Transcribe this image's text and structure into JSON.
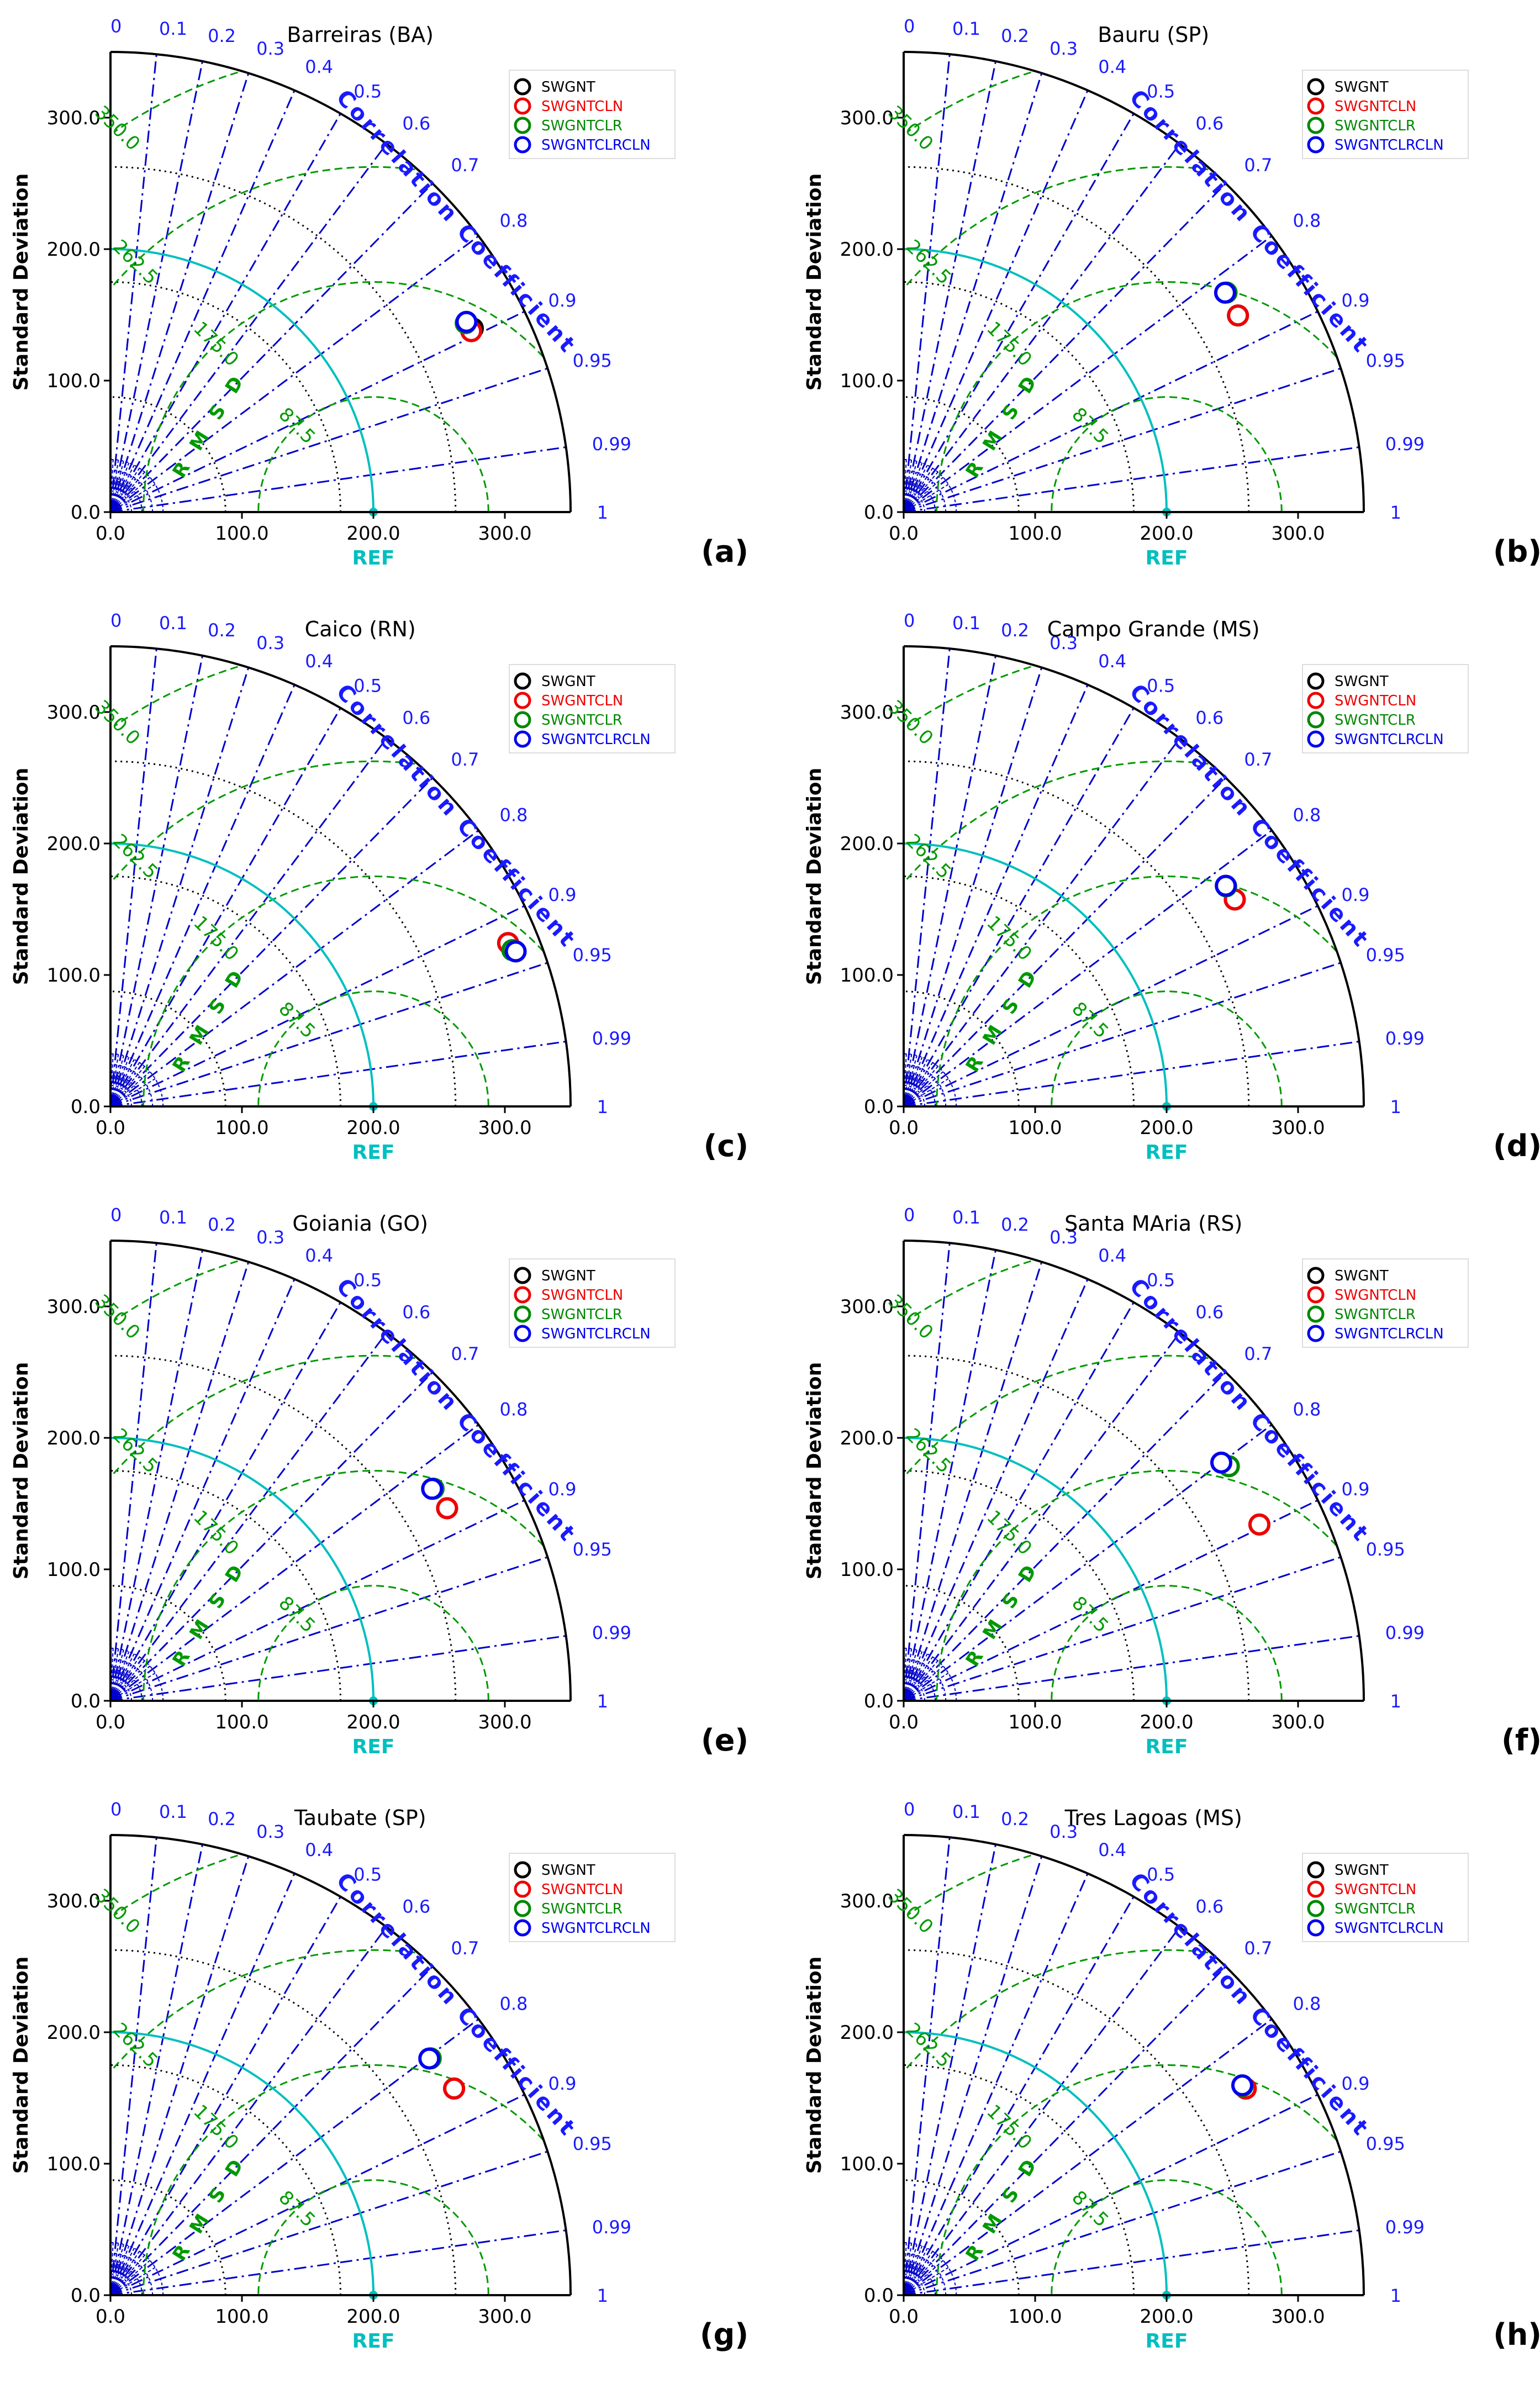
{
  "chart_data": [
    {
      "type": "taylor",
      "title": "Barreiras (BA)",
      "panel_label": "(a)",
      "ylabel": "Standard Deviation",
      "xlabel": "REF",
      "arc_label": "Correlation Coefficient",
      "rmsd_label": "R M S D",
      "ref_std": 200,
      "std_range": [
        0,
        350
      ],
      "std_ticks": [
        "0.0",
        "100.0",
        "200.0",
        "300.0"
      ],
      "corr_ticks": [
        "0",
        "0.1",
        "0.2",
        "0.3",
        "0.4",
        "0.5",
        "0.6",
        "0.7",
        "0.8",
        "0.9",
        "0.95",
        "0.99",
        "1"
      ],
      "rmsd_ticks": [
        "87.5",
        "175.0",
        "262.5",
        "350.0"
      ],
      "legend": [
        "SWGNT",
        "SWGNTCLN",
        "SWGNTCLR",
        "SWGNTCLRCLN"
      ],
      "points": [
        {
          "name": "SWGNT",
          "std": 309,
          "corr": 0.892
        },
        {
          "name": "SWGNTCLN",
          "std": 307,
          "corr": 0.894
        },
        {
          "name": "SWGNTCLR",
          "std": 306,
          "corr": 0.883
        },
        {
          "name": "SWGNTCLRCLN",
          "std": 307,
          "corr": 0.882
        }
      ]
    },
    {
      "type": "taylor",
      "title": "Bauru (SP)",
      "panel_label": "(b)",
      "ylabel": "Standard Deviation",
      "xlabel": "REF",
      "arc_label": "Correlation Coefficient",
      "rmsd_label": "R M S D",
      "ref_std": 200,
      "std_range": [
        0,
        350
      ],
      "std_ticks": [
        "0.0",
        "100.0",
        "200.0",
        "300.0"
      ],
      "corr_ticks": [
        "0",
        "0.1",
        "0.2",
        "0.3",
        "0.4",
        "0.5",
        "0.6",
        "0.7",
        "0.8",
        "0.9",
        "0.95",
        "0.99",
        "1"
      ],
      "rmsd_ticks": [
        "87.5",
        "175.0",
        "262.5",
        "350.0"
      ],
      "legend": [
        "SWGNT",
        "SWGNTCLN",
        "SWGNTCLR",
        "SWGNTCLRCLN"
      ],
      "points": [
        {
          "name": "SWGNT",
          "std": 295,
          "corr": 0.862
        },
        {
          "name": "SWGNTCLN",
          "std": 295,
          "corr": 0.862
        },
        {
          "name": "SWGNTCLR",
          "std": 297,
          "corr": 0.827
        },
        {
          "name": "SWGNTCLRCLN",
          "std": 296,
          "corr": 0.826
        }
      ]
    },
    {
      "type": "taylor",
      "title": "Caico (RN)",
      "panel_label": "(c)",
      "ylabel": "Standard Deviation",
      "xlabel": "REF",
      "arc_label": "Correlation Coefficient",
      "rmsd_label": "R M S D",
      "ref_std": 200,
      "std_range": [
        0,
        350
      ],
      "std_ticks": [
        "0.0",
        "100.0",
        "200.0",
        "300.0"
      ],
      "corr_ticks": [
        "0",
        "0.1",
        "0.2",
        "0.3",
        "0.4",
        "0.5",
        "0.6",
        "0.7",
        "0.8",
        "0.9",
        "0.95",
        "0.99",
        "1"
      ],
      "rmsd_ticks": [
        "87.5",
        "175.0",
        "262.5",
        "350.0"
      ],
      "legend": [
        "SWGNT",
        "SWGNTCLN",
        "SWGNTCLR",
        "SWGNTCLRCLN"
      ],
      "points": [
        {
          "name": "SWGNT",
          "std": 327,
          "corr": 0.925
        },
        {
          "name": "SWGNTCLN",
          "std": 327,
          "corr": 0.925
        },
        {
          "name": "SWGNTCLR",
          "std": 328,
          "corr": 0.932
        },
        {
          "name": "SWGNTCLRCLN",
          "std": 330,
          "corr": 0.934
        }
      ]
    },
    {
      "type": "taylor",
      "title": "Campo Grande (MS)",
      "panel_label": "(d)",
      "ylabel": "Standard Deviation",
      "xlabel": "REF",
      "arc_label": "Correlation Coefficient",
      "rmsd_label": "R M S D",
      "ref_std": 200,
      "std_range": [
        0,
        350
      ],
      "std_ticks": [
        "0.0",
        "100.0",
        "200.0",
        "300.0"
      ],
      "corr_ticks": [
        "0",
        "0.1",
        "0.2",
        "0.3",
        "0.4",
        "0.5",
        "0.6",
        "0.7",
        "0.8",
        "0.9",
        "0.95",
        "0.99",
        "1"
      ],
      "rmsd_ticks": [
        "87.5",
        "175.0",
        "262.5",
        "350.0"
      ],
      "legend": [
        "SWGNT",
        "SWGNTCLN",
        "SWGNTCLR",
        "SWGNTCLRCLN"
      ],
      "points": [
        {
          "name": "SWGNT",
          "std": 297,
          "corr": 0.848
        },
        {
          "name": "SWGNTCLN",
          "std": 297,
          "corr": 0.848
        },
        {
          "name": "SWGNTCLR",
          "std": 297,
          "corr": 0.826
        },
        {
          "name": "SWGNTCLRCLN",
          "std": 297,
          "corr": 0.825
        }
      ]
    },
    {
      "type": "taylor",
      "title": "Goiania (GO)",
      "panel_label": "(e)",
      "ylabel": "Standard Deviation",
      "xlabel": "REF",
      "arc_label": "Correlation Coefficient",
      "rmsd_label": "R M S D",
      "ref_std": 200,
      "std_range": [
        0,
        350
      ],
      "std_ticks": [
        "0.0",
        "100.0",
        "200.0",
        "300.0"
      ],
      "corr_ticks": [
        "0",
        "0.1",
        "0.2",
        "0.3",
        "0.4",
        "0.5",
        "0.6",
        "0.7",
        "0.8",
        "0.9",
        "0.95",
        "0.99",
        "1"
      ],
      "rmsd_ticks": [
        "87.5",
        "175.0",
        "262.5",
        "350.0"
      ],
      "legend": [
        "SWGNT",
        "SWGNTCLN",
        "SWGNTCLR",
        "SWGNTCLRCLN"
      ],
      "points": [
        {
          "name": "SWGNT",
          "std": 295,
          "corr": 0.868
        },
        {
          "name": "SWGNTCLN",
          "std": 295,
          "corr": 0.868
        },
        {
          "name": "SWGNTCLR",
          "std": 294,
          "corr": 0.836
        },
        {
          "name": "SWGNTCLRCLN",
          "std": 293,
          "corr": 0.835
        }
      ]
    },
    {
      "type": "taylor",
      "title": "Santa MAria (RS)",
      "panel_label": "(f)",
      "ylabel": "Standard Deviation",
      "xlabel": "REF",
      "arc_label": "Correlation Coefficient",
      "rmsd_label": "R M S D",
      "ref_std": 200,
      "std_range": [
        0,
        350
      ],
      "std_ticks": [
        "0.0",
        "100.0",
        "200.0",
        "300.0"
      ],
      "corr_ticks": [
        "0",
        "0.1",
        "0.2",
        "0.3",
        "0.4",
        "0.5",
        "0.6",
        "0.7",
        "0.8",
        "0.9",
        "0.95",
        "0.99",
        "1"
      ],
      "rmsd_ticks": [
        "87.5",
        "175.0",
        "262.5",
        "350.0"
      ],
      "legend": [
        "SWGNT",
        "SWGNTCLN",
        "SWGNTCLR",
        "SWGNTCLRCLN"
      ],
      "points": [
        {
          "name": "SWGNT",
          "std": 302,
          "corr": 0.896
        },
        {
          "name": "SWGNTCLN",
          "std": 302,
          "corr": 0.896
        },
        {
          "name": "SWGNTCLR",
          "std": 305,
          "corr": 0.811
        },
        {
          "name": "SWGNTCLRCLN",
          "std": 302,
          "corr": 0.8
        }
      ]
    },
    {
      "type": "taylor",
      "title": "Taubate (SP)",
      "panel_label": "(g)",
      "ylabel": "Standard Deviation",
      "xlabel": "REF",
      "arc_label": "Correlation Coefficient",
      "rmsd_label": "R M S D",
      "ref_std": 200,
      "std_range": [
        0,
        350
      ],
      "std_ticks": [
        "0.0",
        "100.0",
        "200.0",
        "300.0"
      ],
      "corr_ticks": [
        "0",
        "0.1",
        "0.2",
        "0.3",
        "0.4",
        "0.5",
        "0.6",
        "0.7",
        "0.8",
        "0.9",
        "0.95",
        "0.99",
        "1"
      ],
      "rmsd_ticks": [
        "87.5",
        "175.0",
        "262.5",
        "350.0"
      ],
      "legend": [
        "SWGNT",
        "SWGNTCLN",
        "SWGNTCLR",
        "SWGNTCLRCLN"
      ],
      "points": [
        {
          "name": "SWGNT",
          "std": 305,
          "corr": 0.857
        },
        {
          "name": "SWGNTCLN",
          "std": 305,
          "corr": 0.857
        },
        {
          "name": "SWGNTCLR",
          "std": 303,
          "corr": 0.804
        },
        {
          "name": "SWGNTCLRCLN",
          "std": 302,
          "corr": 0.803
        }
      ]
    },
    {
      "type": "taylor",
      "title": "Tres Lagoas (MS)",
      "panel_label": "(h)",
      "ylabel": "Standard Deviation",
      "xlabel": "REF",
      "arc_label": "Correlation Coefficient",
      "rmsd_label": "R M S D",
      "ref_std": 200,
      "std_range": [
        0,
        350
      ],
      "std_ticks": [
        "0.0",
        "100.0",
        "200.0",
        "300.0"
      ],
      "corr_ticks": [
        "0",
        "0.1",
        "0.2",
        "0.3",
        "0.4",
        "0.5",
        "0.6",
        "0.7",
        "0.8",
        "0.9",
        "0.95",
        "0.99",
        "1"
      ],
      "rmsd_ticks": [
        "87.5",
        "175.0",
        "262.5",
        "350.0"
      ],
      "legend": [
        "SWGNT",
        "SWGNTCLN",
        "SWGNTCLR",
        "SWGNTCLRCLN"
      ],
      "points": [
        {
          "name": "SWGNT",
          "std": 304,
          "corr": 0.856
        },
        {
          "name": "SWGNTCLN",
          "std": 304,
          "corr": 0.856
        },
        {
          "name": "SWGNTCLR",
          "std": 303,
          "corr": 0.851
        },
        {
          "name": "SWGNTCLRCLN",
          "std": 303,
          "corr": 0.85
        }
      ]
    }
  ],
  "colors": {
    "axes": "#000000",
    "corr_lines": "#0000cc",
    "corr_labels": "#1a1aff",
    "rmsd": "#009900",
    "ref_arc": "#00bfbf",
    "std_dotted": "#000000",
    "series": [
      "#000000",
      "#ee0000",
      "#008800",
      "#0000ee"
    ]
  }
}
